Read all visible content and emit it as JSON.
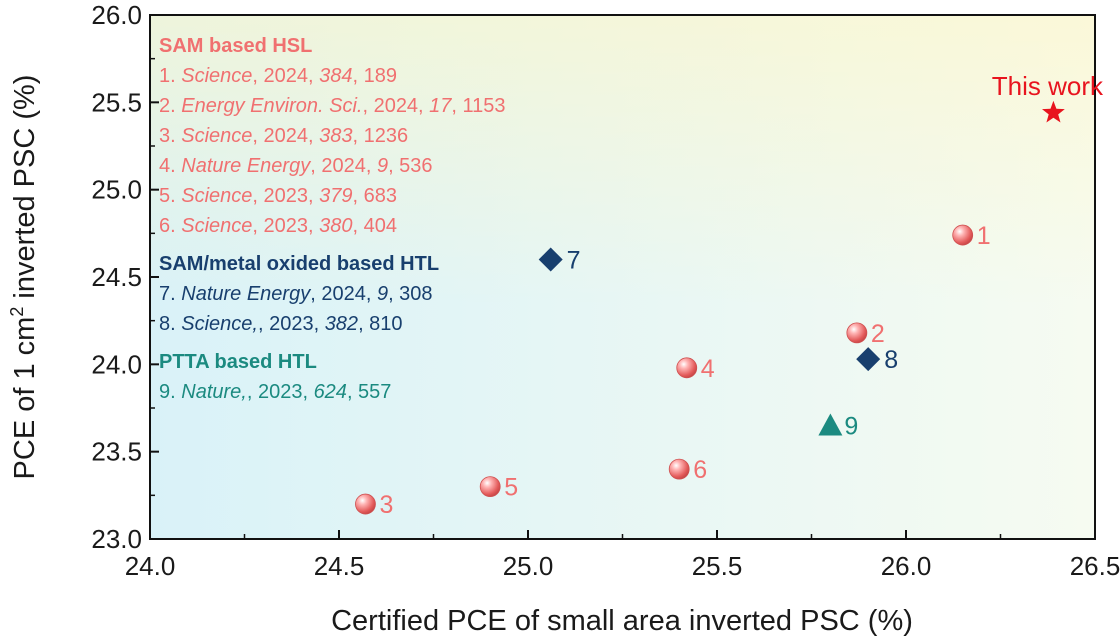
{
  "chart_data": {
    "type": "scatter",
    "title": "",
    "xlabel": "Certified PCE of small area inverted PSC (%)",
    "ylabel_parts": {
      "before": "PCE of 1 cm",
      "sup": "2",
      "after": " inverted PSC (%)"
    },
    "xlim": [
      24.0,
      26.5
    ],
    "ylim": [
      23.0,
      26.0
    ],
    "x_ticks": [
      "24.0",
      "24.5",
      "25.0",
      "25.5",
      "26.0",
      "26.5"
    ],
    "y_ticks": [
      "23.0",
      "23.5",
      "24.0",
      "24.5",
      "25.0",
      "25.5",
      "26.0"
    ],
    "colors": {
      "sam": "#f07070",
      "sam_metal": "#183f6e",
      "ptta": "#1b8a80",
      "this_work": "#e8141e"
    },
    "points": [
      {
        "label": "1",
        "x": 26.15,
        "y": 24.74,
        "group": "sam",
        "marker": "sphere"
      },
      {
        "label": "2",
        "x": 25.87,
        "y": 24.18,
        "group": "sam",
        "marker": "sphere"
      },
      {
        "label": "3",
        "x": 24.57,
        "y": 23.2,
        "group": "sam",
        "marker": "sphere"
      },
      {
        "label": "4",
        "x": 25.42,
        "y": 23.98,
        "group": "sam",
        "marker": "sphere"
      },
      {
        "label": "5",
        "x": 24.9,
        "y": 23.3,
        "group": "sam",
        "marker": "sphere"
      },
      {
        "label": "6",
        "x": 25.4,
        "y": 23.4,
        "group": "sam",
        "marker": "sphere"
      },
      {
        "label": "7",
        "x": 25.06,
        "y": 24.6,
        "group": "sam_metal",
        "marker": "diamond"
      },
      {
        "label": "8",
        "x": 25.9,
        "y": 24.03,
        "group": "sam_metal",
        "marker": "diamond"
      },
      {
        "label": "9",
        "x": 25.8,
        "y": 23.65,
        "group": "ptta",
        "marker": "triangle"
      },
      {
        "label": "This work",
        "x": 26.39,
        "y": 25.44,
        "group": "this_work",
        "marker": "star"
      }
    ],
    "legend": [
      {
        "group": "sam",
        "heading": "SAM based HSL",
        "refs": [
          {
            "num": "1.",
            "journal": "Science",
            "year": "2024",
            "vol": "384",
            "page": "189"
          },
          {
            "num": "2.",
            "journal": "Energy Environ. Sci.",
            "year": "2024",
            "vol": "17",
            "page": "1153"
          },
          {
            "num": "3.",
            "journal": "Science",
            "year": "2024",
            "vol": "383",
            "page": "1236"
          },
          {
            "num": "4.",
            "journal": "Nature Energy",
            "year": "2024",
            "vol": "9",
            "page": "536"
          },
          {
            "num": "5.",
            "journal": "Science",
            "year": "2023",
            "vol": "379",
            "page": "683"
          },
          {
            "num": "6.",
            "journal": "Science",
            "year": "2023",
            "vol": "380",
            "page": "404"
          }
        ]
      },
      {
        "group": "sam_metal",
        "heading": "SAM/metal oxided based HTL",
        "refs": [
          {
            "num": "7.",
            "journal": "Nature Energy",
            "year": "2024",
            "vol": "9",
            "page": "308"
          },
          {
            "num": "8.",
            "journal": "Science,",
            "year": "2023",
            "vol": "382",
            "page": "810"
          }
        ]
      },
      {
        "group": "ptta",
        "heading": "PTTA based HTL",
        "refs": [
          {
            "num": "9.",
            "journal": "Nature,",
            "year": "2023",
            "vol": "624",
            "page": "557"
          }
        ]
      }
    ]
  }
}
